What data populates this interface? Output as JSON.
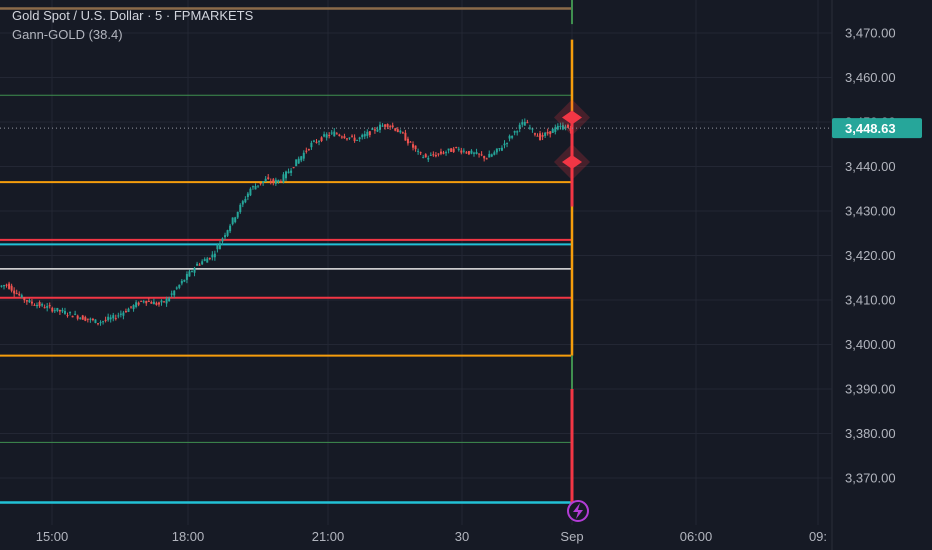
{
  "legend": {
    "symbol": "Gold Spot / U.S. Dollar · 5 · FPMARKETS",
    "indicator": "Gann-GOLD (38.4)"
  },
  "colors": {
    "background": "#161a25",
    "grid": "#232734",
    "axis_text": "#b2b5be",
    "candle_up": "#26a69a",
    "candle_down": "#ef5350",
    "price_label_bg": "#26a69a",
    "orange": "#f59d0c",
    "red": "#f23645",
    "cyan": "#22c1d6",
    "white": "#e6e6e6",
    "green": "#3f8f4f",
    "gray_top": "#8a6a4a",
    "diamond": "#f23645",
    "bolt_circle": "#b23cd6"
  },
  "chart_data": {
    "type": "candlestick",
    "title": "Gold Spot / U.S. Dollar · 5 · FPMARKETS",
    "ylim": [
      3361,
      3478
    ],
    "y_ticks": [
      "3,470.00",
      "3,460.00",
      "3,450.00",
      "3,440.00",
      "3,430.00",
      "3,420.00",
      "3,410.00",
      "3,400.00",
      "3,390.00",
      "3,380.00",
      "3,370.00"
    ],
    "y_tick_values": [
      3470,
      3460,
      3450,
      3440,
      3430,
      3420,
      3410,
      3400,
      3390,
      3380,
      3370
    ],
    "x_ticks": [
      "15:00",
      "18:00",
      "21:00",
      "30",
      "Sep",
      "06:00",
      "09:"
    ],
    "current_price": 3448.63,
    "current_price_label": "3,448.63",
    "price_series": [
      3413.5,
      3412,
      3410.5,
      3409.5,
      3409,
      3408.5,
      3408,
      3407.5,
      3407,
      3406.5,
      3406,
      3405.5,
      3405,
      3405.5,
      3406,
      3407,
      3408,
      3409,
      3410,
      3409.5,
      3409,
      3410,
      3412,
      3414,
      3416,
      3418,
      3419,
      3420,
      3423,
      3426,
      3429,
      3432,
      3435,
      3436,
      3437,
      3436.5,
      3437,
      3439,
      3441,
      3443,
      3445,
      3446,
      3447,
      3447.5,
      3447,
      3446.5,
      3446,
      3447,
      3448,
      3449,
      3449.5,
      3448.5,
      3447,
      3445,
      3443,
      3442,
      3442.5,
      3443,
      3443.5,
      3444,
      3443.5,
      3443,
      3442.5,
      3442,
      3443,
      3444.5,
      3446.5,
      3448.5,
      3450,
      3448,
      3446.5,
      3447.5,
      3448.5,
      3449,
      3448.63
    ],
    "levels": [
      {
        "price": 3475.5,
        "color": "gray_top",
        "width": 2.5,
        "x_end": 1.0
      },
      {
        "price": 3456,
        "color": "green",
        "width": 1,
        "x_end": 1.0
      },
      {
        "price": 3436.5,
        "color": "orange",
        "width": 2,
        "x_end": 1.0
      },
      {
        "price": 3423.5,
        "color": "red",
        "width": 2,
        "x_end": 1.0
      },
      {
        "price": 3422.5,
        "color": "cyan",
        "width": 2,
        "x_end": 1.0
      },
      {
        "price": 3417,
        "color": "white",
        "width": 1.5,
        "x_end": 1.0
      },
      {
        "price": 3410.5,
        "color": "red",
        "width": 2,
        "x_end": 1.0
      },
      {
        "price": 3397.5,
        "color": "orange",
        "width": 2,
        "x_end": 1.0
      },
      {
        "price": 3378,
        "color": "green",
        "width": 1,
        "x_end": 1.0
      },
      {
        "price": 3364.5,
        "color": "cyan",
        "width": 2.5,
        "x_end": 1.0
      }
    ],
    "vertical_bars": [
      {
        "from": 3478,
        "to": 3472,
        "color": "green",
        "width": 2
      },
      {
        "from": 3468.5,
        "to": 3397.5,
        "color": "orange",
        "width": 2.5
      },
      {
        "from": 3452,
        "to": 3431,
        "color": "red",
        "width": 3
      },
      {
        "from": 3397.5,
        "to": 3362,
        "color": "green",
        "width": 2
      },
      {
        "from": 3390,
        "to": 3362,
        "color": "red",
        "width": 3
      }
    ],
    "markers": [
      {
        "type": "diamond",
        "price": 3451
      },
      {
        "type": "diamond",
        "price": 3441
      },
      {
        "type": "bolt",
        "price": 3364
      }
    ]
  }
}
